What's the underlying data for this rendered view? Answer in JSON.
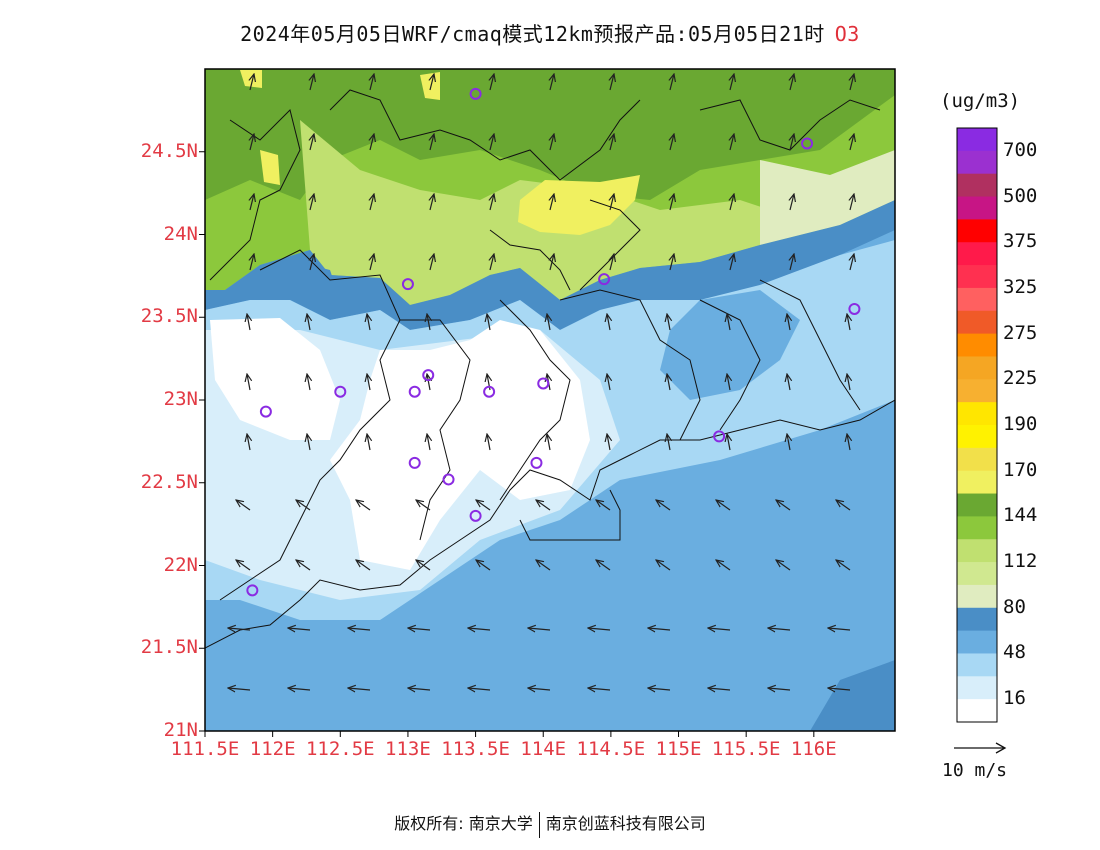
{
  "title": {
    "main": "2024年05月05日WRF/cmaq模式12km预报产品:05月05日21时",
    "species": "O3"
  },
  "lat_ticks": [
    {
      "value": 24.5,
      "label": "24.5N"
    },
    {
      "value": 24,
      "label": "24N"
    },
    {
      "value": 23.5,
      "label": "23.5N"
    },
    {
      "value": 23,
      "label": "23N"
    },
    {
      "value": 22.5,
      "label": "22.5N"
    },
    {
      "value": 22,
      "label": "22N"
    },
    {
      "value": 21.5,
      "label": "21.5N"
    },
    {
      "value": 21,
      "label": "21N"
    }
  ],
  "lon_ticks": [
    {
      "value": 111.5,
      "label": "111.5E"
    },
    {
      "value": 112,
      "label": "112E"
    },
    {
      "value": 112.5,
      "label": "112.5E"
    },
    {
      "value": 113,
      "label": "113E"
    },
    {
      "value": 113.5,
      "label": "113.5E"
    },
    {
      "value": 114,
      "label": "114E"
    },
    {
      "value": 114.5,
      "label": "114.5E"
    },
    {
      "value": 115,
      "label": "115E"
    },
    {
      "value": 115.5,
      "label": "115.5E"
    },
    {
      "value": 116,
      "label": "116E"
    }
  ],
  "colorbar": {
    "unit": "(ug/m3)",
    "colors_top_to_bottom": [
      "#8a2be2",
      "#9b30d0",
      "#b03060",
      "#c71585",
      "#ff0000",
      "#ff1a4a",
      "#ff3050",
      "#ff6060",
      "#f05a28",
      "#ff8c00",
      "#f5a623",
      "#f7b030",
      "#ffe600",
      "#fff200",
      "#f2e04a",
      "#f0f060",
      "#6aa832",
      "#8cc83c",
      "#c0e070",
      "#d0e890",
      "#e0ecc0",
      "#4a8ec6",
      "#6aaee0",
      "#a8d8f4",
      "#d8eefa",
      "#ffffff"
    ],
    "labels": [
      "700",
      "500",
      "375",
      "325",
      "275",
      "225",
      "190",
      "170",
      "144",
      "112",
      "80",
      "48",
      "16"
    ]
  },
  "wind_legend": "10 m/s",
  "footer": {
    "left": "版权所有: 南京大学",
    "right": "南京创蓝科技有限公司"
  },
  "stations": [
    {
      "lon": 113.5,
      "lat": 24.85
    },
    {
      "lon": 115.95,
      "lat": 24.55
    },
    {
      "lon": 113.0,
      "lat": 23.7
    },
    {
      "lon": 114.45,
      "lat": 23.73
    },
    {
      "lon": 116.3,
      "lat": 23.55
    },
    {
      "lon": 112.5,
      "lat": 23.05
    },
    {
      "lon": 113.05,
      "lat": 23.05
    },
    {
      "lon": 113.15,
      "lat": 23.15
    },
    {
      "lon": 113.6,
      "lat": 23.05
    },
    {
      "lon": 114.0,
      "lat": 23.1
    },
    {
      "lon": 111.95,
      "lat": 22.93
    },
    {
      "lon": 115.3,
      "lat": 22.78
    },
    {
      "lon": 113.05,
      "lat": 22.62
    },
    {
      "lon": 113.3,
      "lat": 22.52
    },
    {
      "lon": 113.95,
      "lat": 22.62
    },
    {
      "lon": 113.5,
      "lat": 22.3
    },
    {
      "lon": 111.85,
      "lat": 21.85
    }
  ]
}
